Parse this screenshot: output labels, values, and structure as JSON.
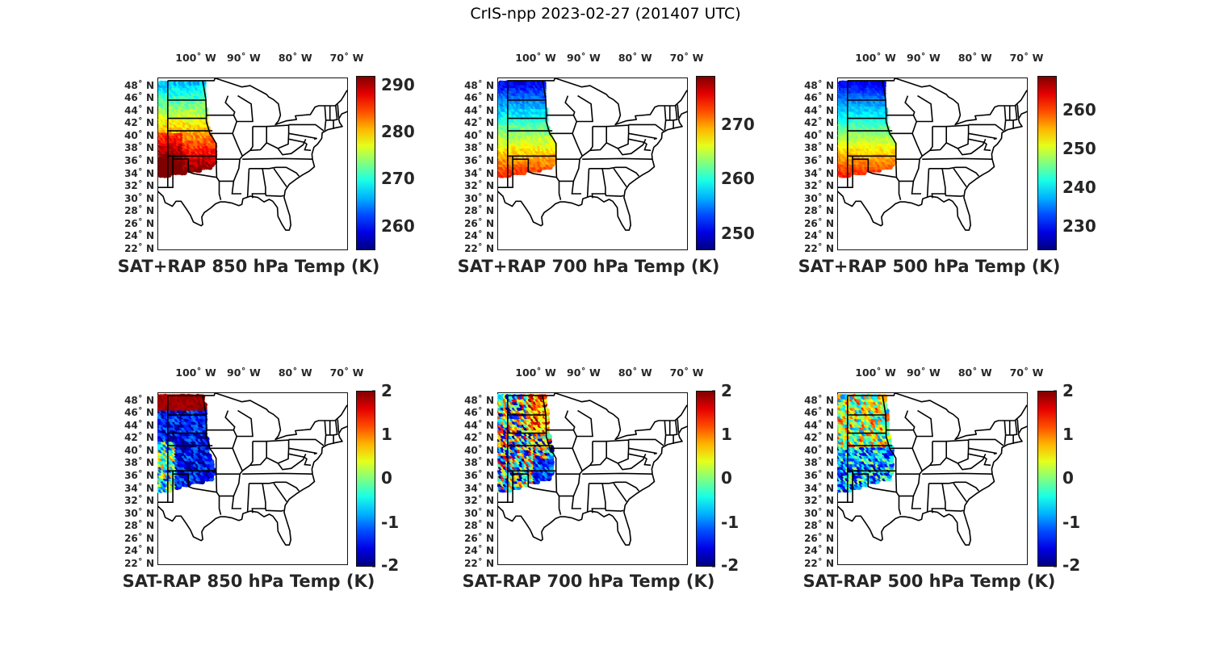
{
  "figure": {
    "title": "CrIS-npp 2023-02-27 (201407 UTC)",
    "lon_labels": [
      "100˚ W",
      "90˚ W",
      "80˚ W",
      "70˚ W"
    ],
    "lat_labels": [
      "48˚ N",
      "46˚ N",
      "44˚ N",
      "42˚ N",
      "40˚ N",
      "38˚ N",
      "36˚ N",
      "34˚ N",
      "32˚ N",
      "30˚ N",
      "28˚ N",
      "26˚ N",
      "24˚ N",
      "22˚ N"
    ],
    "lat_values": [
      48,
      46,
      44,
      42,
      40,
      38,
      36,
      34,
      32,
      30,
      28,
      26,
      24,
      22
    ],
    "lon_values": [
      -100,
      -90,
      -80,
      -70
    ],
    "extent": {
      "lon": [
        -106,
        -69
      ],
      "lat": [
        22,
        49.5
      ]
    },
    "colormap": "jet",
    "colors": {
      "frame": "#111111",
      "land_outline": "#000000",
      "background": "#ffffff"
    }
  },
  "panels": [
    {
      "id": "p1",
      "title": "SAT+RAP 850 hPa Temp (K)",
      "kind": "temperature",
      "field": "warm850",
      "cbar_range": [
        255,
        292
      ],
      "cbar_ticks": [
        {
          "v": 290,
          "t": "290"
        },
        {
          "v": 280,
          "t": "280"
        },
        {
          "v": 270,
          "t": "270"
        },
        {
          "v": 260,
          "t": "260"
        }
      ]
    },
    {
      "id": "p2",
      "title": "SAT+RAP 700 hPa Temp (K)",
      "kind": "temperature",
      "field": "warm700",
      "cbar_range": [
        247,
        279
      ],
      "cbar_ticks": [
        {
          "v": 270,
          "t": "270"
        },
        {
          "v": 260,
          "t": "260"
        },
        {
          "v": 250,
          "t": "250"
        }
      ]
    },
    {
      "id": "p3",
      "title": "SAT+RAP 500 hPa Temp (K)",
      "kind": "temperature",
      "field": "warm500",
      "cbar_range": [
        224,
        269
      ],
      "cbar_ticks": [
        {
          "v": 260,
          "t": "260"
        },
        {
          "v": 250,
          "t": "250"
        },
        {
          "v": 240,
          "t": "240"
        },
        {
          "v": 230,
          "t": "230"
        }
      ]
    },
    {
      "id": "p4",
      "title": "SAT-RAP 850 hPa Temp (K)",
      "kind": "difference",
      "field": "diff850",
      "cbar_range": [
        -2,
        2
      ],
      "cbar_ticks": [
        {
          "v": 2,
          "t": "2"
        },
        {
          "v": 1,
          "t": "1"
        },
        {
          "v": 0,
          "t": "0"
        },
        {
          "v": -1,
          "t": "-1"
        },
        {
          "v": -2,
          "t": "-2"
        }
      ]
    },
    {
      "id": "p5",
      "title": "SAT-RAP 700 hPa Temp (K)",
      "kind": "difference",
      "field": "diff700",
      "cbar_range": [
        -2,
        2
      ],
      "cbar_ticks": [
        {
          "v": 2,
          "t": "2"
        },
        {
          "v": 1,
          "t": "1"
        },
        {
          "v": 0,
          "t": "0"
        },
        {
          "v": -1,
          "t": "-1"
        },
        {
          "v": -2,
          "t": "-2"
        }
      ]
    },
    {
      "id": "p6",
      "title": "SAT-RAP 500 hPa Temp (K)",
      "kind": "difference",
      "field": "diff500",
      "cbar_range": [
        -2,
        2
      ],
      "cbar_ticks": [
        {
          "v": 2,
          "t": "2"
        },
        {
          "v": 1,
          "t": "1"
        },
        {
          "v": 0,
          "t": "0"
        },
        {
          "v": -1,
          "t": "-1"
        },
        {
          "v": -2,
          "t": "-2"
        }
      ]
    }
  ]
}
